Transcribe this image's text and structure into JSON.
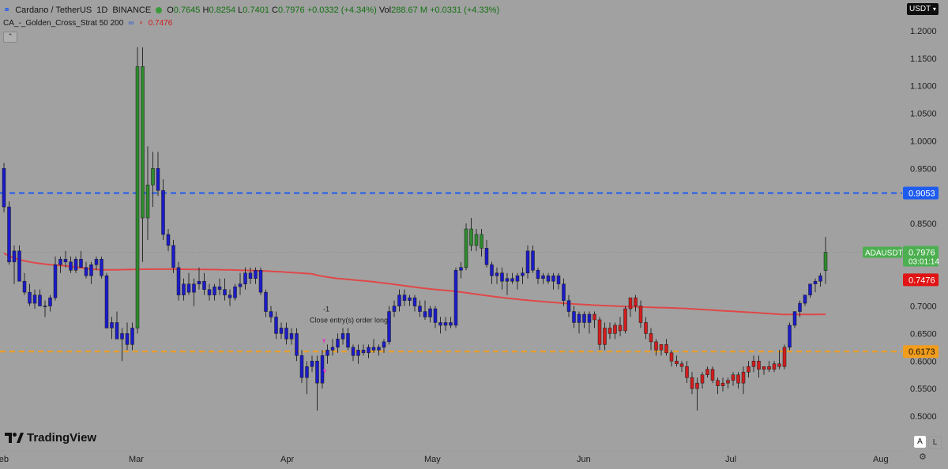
{
  "header": {
    "symbol": "Cardano / TetherUS",
    "interval": "1D",
    "exchange": "BINANCE",
    "open_label": "O",
    "open": "0.7645",
    "high_label": "H",
    "high": "0.8254",
    "low_label": "L",
    "low": "0.7401",
    "close_label": "C",
    "close": "0.7976",
    "change": "+0.0332 (+4.34%)",
    "vol_label": "Vol",
    "volume": "288.67 M",
    "vol_change": "+0.0331 (+4.33%)"
  },
  "indicator": {
    "name": "CA_-_Golden_Cross_Strat 50 200",
    "value": "0.7476"
  },
  "currency_button": "USDT",
  "branding": "TradingView",
  "scale_buttons": {
    "a": "A",
    "l": "L"
  },
  "chart_data": {
    "type": "candlestick",
    "y_axis": {
      "ticks": [
        "0.5000",
        "0.5500",
        "0.6000",
        "0.6500",
        "0.7000",
        "0.7500",
        "0.8000",
        "0.8500",
        "0.9000",
        "0.9500",
        "1.0000",
        "1.0500",
        "1.1000",
        "1.1500",
        "1.2000"
      ],
      "range": [
        0.48,
        1.21
      ]
    },
    "x_axis": {
      "ticks": [
        "Feb",
        "Mar",
        "Apr",
        "May",
        "Jun",
        "Jul",
        "Aug"
      ]
    },
    "horizontal_lines": [
      {
        "value": 0.9053,
        "label": "0.9053",
        "color": "#1e5cf0",
        "style": "dashed"
      },
      {
        "value": 0.6173,
        "label": "0.6173",
        "color": "#f29d1c",
        "style": "dashed"
      }
    ],
    "price_labels": [
      {
        "name": "ADAUSDT",
        "value": "0.7976",
        "sub": "03:01:14",
        "y": 0.7976,
        "color": "#4caf50"
      },
      {
        "name": "ma",
        "value": "0.7476",
        "y": 0.7476,
        "color": "#e01414"
      }
    ],
    "annotation": {
      "label": "-1",
      "text": "Close entry(s) order long"
    },
    "colors": {
      "up_early": "#2e8b2e",
      "bear_phase": "#1b1bc8",
      "bull_phase": "#d21c1c",
      "ma_up": "#3a9a3a",
      "ma_down": "#e04848"
    },
    "candles": [
      [
        0.95,
        0.96,
        0.87,
        0.88,
        "b"
      ],
      [
        0.88,
        0.89,
        0.775,
        0.78,
        "b"
      ],
      [
        0.78,
        0.81,
        0.74,
        0.8,
        "b"
      ],
      [
        0.8,
        0.81,
        0.745,
        0.745,
        "b"
      ],
      [
        0.745,
        0.76,
        0.72,
        0.725,
        "b"
      ],
      [
        0.725,
        0.74,
        0.7,
        0.705,
        "b"
      ],
      [
        0.705,
        0.73,
        0.695,
        0.72,
        "b"
      ],
      [
        0.72,
        0.73,
        0.7,
        0.7,
        "b"
      ],
      [
        0.7,
        0.71,
        0.68,
        0.7,
        "b"
      ],
      [
        0.7,
        0.72,
        0.69,
        0.715,
        "b"
      ],
      [
        0.715,
        0.79,
        0.71,
        0.775,
        "b"
      ],
      [
        0.775,
        0.79,
        0.76,
        0.785,
        "b"
      ],
      [
        0.785,
        0.8,
        0.77,
        0.78,
        "b"
      ],
      [
        0.78,
        0.79,
        0.76,
        0.765,
        "b"
      ],
      [
        0.765,
        0.79,
        0.76,
        0.785,
        "b"
      ],
      [
        0.785,
        0.8,
        0.77,
        0.77,
        "b"
      ],
      [
        0.77,
        0.78,
        0.75,
        0.755,
        "b"
      ],
      [
        0.755,
        0.78,
        0.74,
        0.775,
        "b"
      ],
      [
        0.775,
        0.79,
        0.765,
        0.785,
        "b"
      ],
      [
        0.785,
        0.79,
        0.75,
        0.755,
        "b"
      ],
      [
        0.755,
        0.76,
        0.66,
        0.66,
        "b"
      ],
      [
        0.66,
        0.68,
        0.64,
        0.67,
        "b"
      ],
      [
        0.67,
        0.69,
        0.64,
        0.64,
        "b"
      ],
      [
        0.64,
        0.66,
        0.6,
        0.65,
        "b"
      ],
      [
        0.65,
        0.67,
        0.62,
        0.63,
        "b"
      ],
      [
        0.63,
        0.67,
        0.62,
        0.66,
        "b"
      ],
      [
        0.66,
        1.17,
        0.65,
        1.135,
        "g"
      ],
      [
        1.135,
        1.17,
        0.78,
        0.86,
        "g"
      ],
      [
        0.86,
        0.99,
        0.82,
        0.92,
        "g"
      ],
      [
        0.92,
        0.98,
        0.88,
        0.95,
        "g"
      ],
      [
        0.95,
        0.98,
        0.9,
        0.91,
        "b"
      ],
      [
        0.91,
        0.93,
        0.82,
        0.83,
        "b"
      ],
      [
        0.83,
        0.84,
        0.8,
        0.81,
        "b"
      ],
      [
        0.81,
        0.82,
        0.76,
        0.77,
        "b"
      ],
      [
        0.77,
        0.78,
        0.71,
        0.72,
        "b"
      ],
      [
        0.72,
        0.75,
        0.71,
        0.74,
        "b"
      ],
      [
        0.74,
        0.76,
        0.72,
        0.725,
        "b"
      ],
      [
        0.725,
        0.75,
        0.7,
        0.74,
        "b"
      ],
      [
        0.74,
        0.77,
        0.73,
        0.745,
        "b"
      ],
      [
        0.745,
        0.76,
        0.72,
        0.73,
        "b"
      ],
      [
        0.73,
        0.74,
        0.71,
        0.72,
        "b"
      ],
      [
        0.72,
        0.74,
        0.71,
        0.735,
        "b"
      ],
      [
        0.735,
        0.75,
        0.72,
        0.73,
        "b"
      ],
      [
        0.73,
        0.75,
        0.71,
        0.72,
        "b"
      ],
      [
        0.72,
        0.73,
        0.7,
        0.715,
        "b"
      ],
      [
        0.715,
        0.74,
        0.71,
        0.735,
        "b"
      ],
      [
        0.735,
        0.76,
        0.72,
        0.74,
        "b"
      ],
      [
        0.74,
        0.77,
        0.73,
        0.76,
        "b"
      ],
      [
        0.76,
        0.77,
        0.74,
        0.75,
        "b"
      ],
      [
        0.75,
        0.77,
        0.74,
        0.765,
        "b"
      ],
      [
        0.765,
        0.77,
        0.72,
        0.725,
        "b"
      ],
      [
        0.725,
        0.73,
        0.68,
        0.69,
        "b"
      ],
      [
        0.69,
        0.7,
        0.67,
        0.68,
        "b"
      ],
      [
        0.68,
        0.69,
        0.64,
        0.65,
        "b"
      ],
      [
        0.65,
        0.67,
        0.64,
        0.66,
        "b"
      ],
      [
        0.66,
        0.67,
        0.63,
        0.64,
        "b"
      ],
      [
        0.64,
        0.66,
        0.63,
        0.65,
        "b"
      ],
      [
        0.65,
        0.66,
        0.6,
        0.61,
        "b"
      ],
      [
        0.61,
        0.62,
        0.56,
        0.57,
        "b"
      ],
      [
        0.57,
        0.6,
        0.54,
        0.59,
        "b"
      ],
      [
        0.59,
        0.61,
        0.58,
        0.6,
        "b"
      ],
      [
        0.6,
        0.61,
        0.51,
        0.56,
        "b"
      ],
      [
        0.56,
        0.62,
        0.55,
        0.61,
        "b"
      ],
      [
        0.61,
        0.63,
        0.595,
        0.62,
        "b"
      ],
      [
        0.62,
        0.64,
        0.61,
        0.625,
        "b"
      ],
      [
        0.625,
        0.65,
        0.615,
        0.64,
        "b"
      ],
      [
        0.64,
        0.66,
        0.63,
        0.65,
        "b"
      ],
      [
        0.65,
        0.66,
        0.62,
        0.625,
        "b"
      ],
      [
        0.625,
        0.63,
        0.6,
        0.61,
        "b"
      ],
      [
        0.61,
        0.63,
        0.595,
        0.62,
        "b"
      ],
      [
        0.62,
        0.63,
        0.61,
        0.615,
        "b"
      ],
      [
        0.615,
        0.63,
        0.605,
        0.625,
        "b"
      ],
      [
        0.625,
        0.64,
        0.615,
        0.62,
        "b"
      ],
      [
        0.62,
        0.63,
        0.61,
        0.625,
        "b"
      ],
      [
        0.625,
        0.64,
        0.615,
        0.635,
        "b"
      ],
      [
        0.635,
        0.7,
        0.63,
        0.69,
        "b"
      ],
      [
        0.69,
        0.71,
        0.68,
        0.7,
        "b"
      ],
      [
        0.7,
        0.73,
        0.69,
        0.72,
        "b"
      ],
      [
        0.72,
        0.73,
        0.7,
        0.71,
        "b"
      ],
      [
        0.71,
        0.72,
        0.7,
        0.715,
        "b"
      ],
      [
        0.715,
        0.72,
        0.69,
        0.7,
        "b"
      ],
      [
        0.7,
        0.71,
        0.68,
        0.69,
        "b"
      ],
      [
        0.69,
        0.71,
        0.675,
        0.68,
        "b"
      ],
      [
        0.68,
        0.7,
        0.67,
        0.695,
        "b"
      ],
      [
        0.695,
        0.7,
        0.66,
        0.67,
        "b"
      ],
      [
        0.67,
        0.68,
        0.65,
        0.665,
        "b"
      ],
      [
        0.665,
        0.68,
        0.655,
        0.67,
        "b"
      ],
      [
        0.67,
        0.68,
        0.66,
        0.665,
        "b"
      ],
      [
        0.665,
        0.77,
        0.66,
        0.765,
        "b"
      ],
      [
        0.765,
        0.78,
        0.75,
        0.77,
        "b"
      ],
      [
        0.77,
        0.85,
        0.765,
        0.84,
        "g"
      ],
      [
        0.84,
        0.86,
        0.8,
        0.81,
        "g"
      ],
      [
        0.81,
        0.84,
        0.8,
        0.83,
        "g"
      ],
      [
        0.83,
        0.84,
        0.79,
        0.805,
        "g"
      ],
      [
        0.805,
        0.82,
        0.77,
        0.775,
        "b"
      ],
      [
        0.775,
        0.78,
        0.74,
        0.755,
        "b"
      ],
      [
        0.755,
        0.77,
        0.74,
        0.76,
        "b"
      ],
      [
        0.76,
        0.77,
        0.73,
        0.745,
        "b"
      ],
      [
        0.745,
        0.76,
        0.72,
        0.75,
        "b"
      ],
      [
        0.75,
        0.76,
        0.74,
        0.745,
        "b"
      ],
      [
        0.745,
        0.76,
        0.73,
        0.755,
        "b"
      ],
      [
        0.755,
        0.77,
        0.74,
        0.76,
        "b"
      ],
      [
        0.76,
        0.81,
        0.75,
        0.8,
        "b"
      ],
      [
        0.8,
        0.81,
        0.76,
        0.765,
        "b"
      ],
      [
        0.765,
        0.77,
        0.74,
        0.75,
        "b"
      ],
      [
        0.75,
        0.76,
        0.74,
        0.755,
        "b"
      ],
      [
        0.755,
        0.76,
        0.74,
        0.745,
        "b"
      ],
      [
        0.745,
        0.76,
        0.73,
        0.755,
        "b"
      ],
      [
        0.755,
        0.76,
        0.73,
        0.74,
        "b"
      ],
      [
        0.74,
        0.75,
        0.7,
        0.71,
        "b"
      ],
      [
        0.71,
        0.72,
        0.68,
        0.69,
        "b"
      ],
      [
        0.69,
        0.7,
        0.66,
        0.67,
        "b"
      ],
      [
        0.67,
        0.69,
        0.65,
        0.685,
        "b"
      ],
      [
        0.685,
        0.69,
        0.66,
        0.67,
        "b"
      ],
      [
        0.67,
        0.69,
        0.65,
        0.685,
        "b"
      ],
      [
        0.685,
        0.69,
        0.66,
        0.675,
        "r"
      ],
      [
        0.675,
        0.68,
        0.62,
        0.63,
        "r"
      ],
      [
        0.63,
        0.67,
        0.62,
        0.66,
        "r"
      ],
      [
        0.66,
        0.67,
        0.64,
        0.65,
        "r"
      ],
      [
        0.65,
        0.67,
        0.64,
        0.665,
        "r"
      ],
      [
        0.665,
        0.68,
        0.645,
        0.655,
        "r"
      ],
      [
        0.655,
        0.7,
        0.65,
        0.695,
        "r"
      ],
      [
        0.695,
        0.71,
        0.68,
        0.715,
        "r"
      ],
      [
        0.715,
        0.72,
        0.69,
        0.7,
        "r"
      ],
      [
        0.7,
        0.71,
        0.66,
        0.67,
        "r"
      ],
      [
        0.67,
        0.68,
        0.64,
        0.65,
        "r"
      ],
      [
        0.65,
        0.66,
        0.62,
        0.635,
        "r"
      ],
      [
        0.635,
        0.64,
        0.61,
        0.62,
        "r"
      ],
      [
        0.62,
        0.63,
        0.61,
        0.63,
        "r"
      ],
      [
        0.63,
        0.64,
        0.61,
        0.615,
        "r"
      ],
      [
        0.615,
        0.62,
        0.59,
        0.6,
        "r"
      ],
      [
        0.6,
        0.61,
        0.59,
        0.595,
        "r"
      ],
      [
        0.595,
        0.6,
        0.58,
        0.59,
        "r"
      ],
      [
        0.59,
        0.6,
        0.56,
        0.57,
        "r"
      ],
      [
        0.57,
        0.58,
        0.54,
        0.55,
        "r"
      ],
      [
        0.55,
        0.57,
        0.51,
        0.56,
        "r"
      ],
      [
        0.56,
        0.58,
        0.55,
        0.575,
        "r"
      ],
      [
        0.575,
        0.59,
        0.57,
        0.585,
        "r"
      ],
      [
        0.585,
        0.59,
        0.56,
        0.565,
        "r"
      ],
      [
        0.565,
        0.57,
        0.54,
        0.555,
        "r"
      ],
      [
        0.555,
        0.57,
        0.545,
        0.56,
        "r"
      ],
      [
        0.56,
        0.57,
        0.55,
        0.565,
        "r"
      ],
      [
        0.565,
        0.58,
        0.555,
        0.575,
        "r"
      ],
      [
        0.575,
        0.58,
        0.55,
        0.56,
        "r"
      ],
      [
        0.56,
        0.59,
        0.54,
        0.58,
        "r"
      ],
      [
        0.58,
        0.6,
        0.57,
        0.59,
        "r"
      ],
      [
        0.59,
        0.61,
        0.58,
        0.6,
        "r"
      ],
      [
        0.6,
        0.61,
        0.57,
        0.585,
        "r"
      ],
      [
        0.585,
        0.59,
        0.575,
        0.59,
        "r"
      ],
      [
        0.59,
        0.6,
        0.58,
        0.585,
        "r"
      ],
      [
        0.585,
        0.6,
        0.58,
        0.595,
        "r"
      ],
      [
        0.595,
        0.62,
        0.585,
        0.59,
        "r"
      ],
      [
        0.59,
        0.63,
        0.585,
        0.625,
        "r"
      ],
      [
        0.625,
        0.67,
        0.62,
        0.665,
        "b"
      ],
      [
        0.665,
        0.69,
        0.66,
        0.69,
        "b"
      ],
      [
        0.69,
        0.71,
        0.68,
        0.705,
        "b"
      ],
      [
        0.705,
        0.72,
        0.7,
        0.72,
        "b"
      ],
      [
        0.72,
        0.74,
        0.715,
        0.74,
        "b"
      ],
      [
        0.74,
        0.75,
        0.725,
        0.745,
        "b"
      ],
      [
        0.745,
        0.76,
        0.735,
        0.755,
        "b"
      ],
      [
        0.7645,
        0.8254,
        0.7401,
        0.7976,
        "g"
      ]
    ]
  }
}
